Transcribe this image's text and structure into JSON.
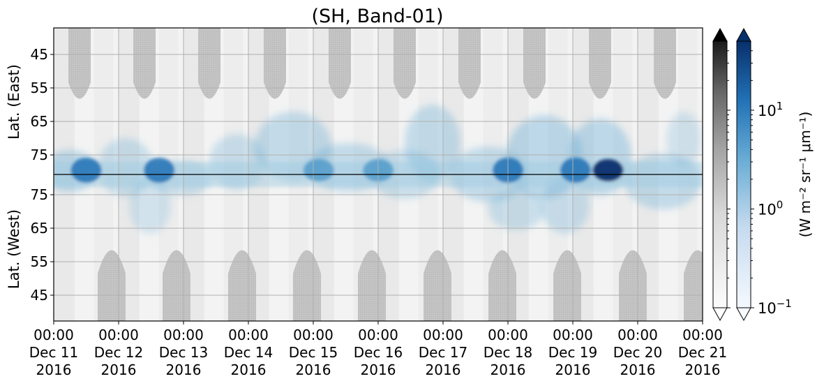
{
  "chart_data": {
    "type": "heatmap",
    "title": "(SH, Band-01)",
    "projection": "polar keogram: east-side latitudes (top) and west-side latitudes (bottom) meeting at the pole line",
    "ylabel_top": "Lat. (East)",
    "ylabel_bottom": "Lat. (West)",
    "yticks_top": [
      "45",
      "55",
      "65",
      "75"
    ],
    "yticks_bottom": [
      "75",
      "65",
      "55",
      "45"
    ],
    "xtick_labels": [
      [
        "00:00",
        "Dec 11",
        "2016"
      ],
      [
        "00:00",
        "Dec 12",
        "2016"
      ],
      [
        "00:00",
        "Dec 13",
        "2016"
      ],
      [
        "00:00",
        "Dec 14",
        "2016"
      ],
      [
        "00:00",
        "Dec 15",
        "2016"
      ],
      [
        "00:00",
        "Dec 16",
        "2016"
      ],
      [
        "00:00",
        "Dec 17",
        "2016"
      ],
      [
        "00:00",
        "Dec 18",
        "2016"
      ],
      [
        "00:00",
        "Dec 19",
        "2016"
      ],
      [
        "00:00",
        "Dec 20",
        "2016"
      ],
      [
        "00:00",
        "Dec 21",
        "2016"
      ]
    ],
    "xlim": [
      "2016-12-11 00:00",
      "2016-12-21 00:00"
    ],
    "grid": true,
    "colorbar": {
      "scale": "log",
      "range": [
        0.1,
        50
      ],
      "ticks": [
        {
          "base": "10",
          "exp": "1"
        },
        {
          "base": "10",
          "exp": "0"
        },
        {
          "base": "10",
          "exp": "−1"
        }
      ],
      "label": "(W m⁻² sr⁻¹ μm⁻¹)",
      "colormaps": [
        "Greys",
        "Blues"
      ],
      "extend": "both"
    },
    "colors": {
      "grey_mask": "#c2c2c2",
      "background_grey": "#ececec",
      "blue_light": "#c6dbef",
      "blue_mid": "#4a98c9",
      "blue_dark": "#08306b"
    },
    "blue_emission_peaks": [
      {
        "time": "2016-12-11 12:00",
        "level": "high"
      },
      {
        "time": "2016-12-12 15:00",
        "level": "high"
      },
      {
        "time": "2016-12-15 02:00",
        "level": "medium"
      },
      {
        "time": "2016-12-16 00:00",
        "level": "medium"
      },
      {
        "time": "2016-12-18 00:00",
        "level": "high"
      },
      {
        "time": "2016-12-19 01:00",
        "level": "high"
      },
      {
        "time": "2016-12-19 13:00",
        "level": "very high"
      }
    ]
  }
}
